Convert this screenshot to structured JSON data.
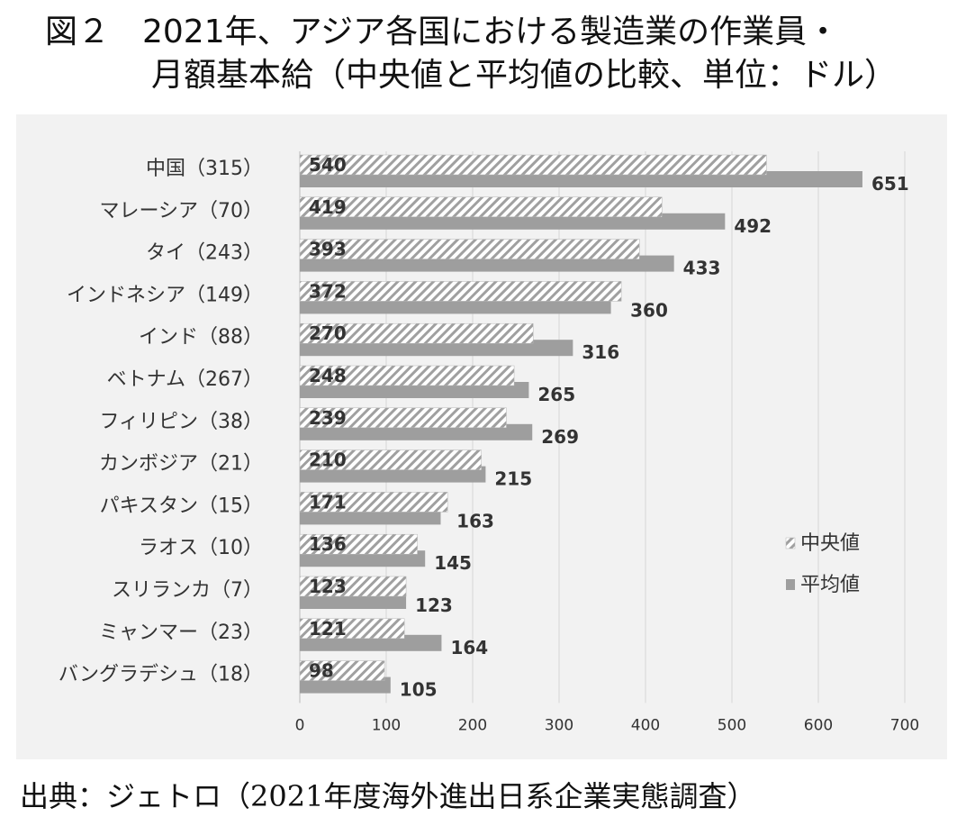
{
  "title": {
    "line1": "図２　2021年、アジア各国における製造業の作業員・",
    "line2": "月額基本給（中央値と平均値の比較、単位：ドル）"
  },
  "source": "出典：ジェトロ（2021年度海外進出日系企業実態調査）",
  "colors": {
    "median": "#c8c8c8",
    "mean": "#9e9e9e",
    "grid": "#d6d6d6",
    "panel": "#f2f2f2"
  },
  "chart_data": {
    "type": "bar",
    "orientation": "horizontal",
    "categories": [
      "中国（315）",
      "マレーシア（70）",
      "タイ（243）",
      "インドネシア（149）",
      "インド（88）",
      "ベトナム（267）",
      "フィリピン（38）",
      "カンボジア（21）",
      "パキスタン（15）",
      "ラオス（10）",
      "スリランカ（7）",
      "ミャンマー（23）",
      "バングラデシュ（18）"
    ],
    "series": [
      {
        "name": "中央値",
        "pattern": "hatched",
        "values": [
          540,
          419,
          393,
          372,
          270,
          248,
          239,
          210,
          171,
          136,
          123,
          121,
          98
        ]
      },
      {
        "name": "平均値",
        "pattern": "solid",
        "values": [
          651,
          492,
          433,
          360,
          316,
          265,
          269,
          215,
          163,
          145,
          123,
          164,
          105
        ]
      }
    ],
    "xlim": [
      0,
      700
    ],
    "xticks": [
      0,
      100,
      200,
      300,
      400,
      500,
      600,
      700
    ],
    "grid": true,
    "legend": "right"
  }
}
